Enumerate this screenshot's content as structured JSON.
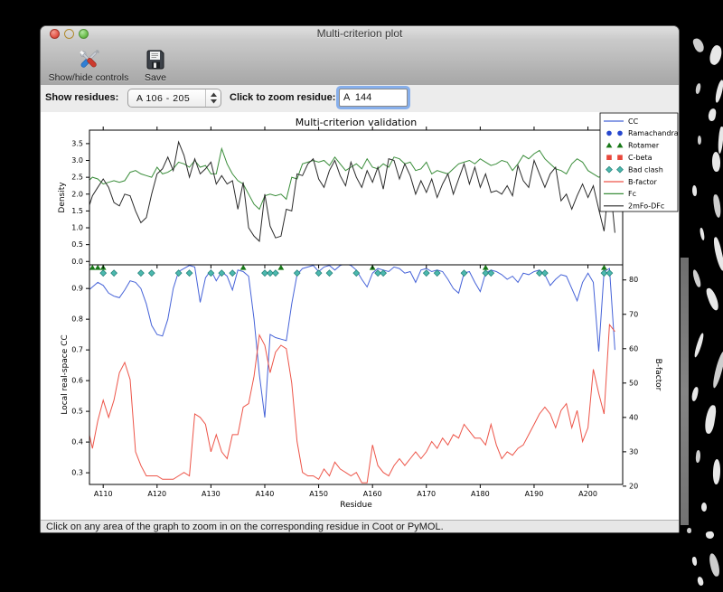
{
  "window": {
    "title": "Multi-criterion plot"
  },
  "toolbar": {
    "buttons": [
      {
        "label": "Show/hide controls"
      },
      {
        "label": "Save"
      }
    ]
  },
  "controls": {
    "show_residues_label": "Show residues:",
    "show_residues_value": "A 106 - 205",
    "zoom_residue_label": "Click to zoom residue:",
    "zoom_residue_value": "A  144"
  },
  "status_bar": {
    "text": "Click on any area of the graph to zoom in on the corresponding residue in Coot or PyMOL."
  },
  "chart_data": {
    "type": "line",
    "title": "Multi-criterion validation",
    "xlabel": "Residue",
    "x_start": 106,
    "x_tick_values": [
      110,
      120,
      130,
      140,
      150,
      160,
      170,
      180,
      190,
      200
    ],
    "x_tick_labels": [
      "A110",
      "A120",
      "A130",
      "A140",
      "A150",
      "A160",
      "A170",
      "A180",
      "A190",
      "A200"
    ],
    "top": {
      "ylabel": "Density",
      "ylim": [
        -0.1,
        3.9
      ],
      "yticks": [
        0.0,
        0.5,
        1.0,
        1.5,
        2.0,
        2.5,
        3.0,
        3.5
      ],
      "series": [
        {
          "name": "Fc",
          "color": "#3a8d3a",
          "values": [
            2.2,
            2.35,
            2.5,
            2.45,
            2.3,
            2.35,
            2.4,
            2.35,
            2.4,
            2.65,
            2.7,
            2.6,
            2.55,
            2.5,
            2.8,
            2.6,
            2.65,
            2.75,
            2.95,
            2.9,
            2.8,
            3.0,
            2.8,
            2.85,
            2.6,
            2.6,
            3.35,
            2.9,
            2.6,
            2.4,
            2.3,
            2.0,
            1.7,
            1.55,
            1.95,
            2.0,
            1.95,
            2.0,
            1.85,
            2.5,
            2.45,
            2.9,
            2.95,
            3.0,
            2.95,
            3.0,
            2.85,
            3.1,
            2.9,
            2.7,
            2.8,
            2.9,
            2.75,
            3.05,
            2.8,
            2.75,
            2.9,
            2.8,
            3.1,
            3.05,
            2.9,
            2.95,
            2.7,
            2.75,
            2.95,
            2.6,
            2.7,
            2.65,
            2.6,
            2.75,
            2.9,
            2.95,
            3.0,
            2.9,
            3.05,
            2.95,
            2.85,
            2.9,
            3.0,
            2.95,
            2.7,
            2.9,
            3.15,
            3.05,
            3.2,
            3.3,
            3.05,
            2.9,
            2.75,
            2.7,
            2.6,
            2.9,
            3.05,
            2.95,
            2.7,
            2.6,
            2.5,
            2.55,
            2.7,
            2.55
          ]
        },
        {
          "name": "2mFo-DFc",
          "color": "#2a2a2a",
          "values": [
            1.6,
            1.45,
            1.95,
            2.2,
            2.45,
            2.2,
            1.75,
            1.65,
            2.0,
            1.95,
            1.5,
            1.15,
            1.3,
            2.0,
            2.6,
            2.75,
            3.1,
            2.7,
            3.55,
            3.15,
            2.5,
            3.05,
            2.6,
            2.75,
            2.95,
            2.3,
            2.55,
            2.3,
            2.4,
            1.55,
            2.35,
            1.0,
            0.75,
            0.6,
            2.0,
            1.05,
            0.7,
            0.75,
            1.55,
            1.5,
            2.6,
            2.55,
            2.9,
            3.05,
            2.45,
            2.2,
            2.7,
            3.0,
            2.55,
            2.25,
            2.95,
            2.5,
            2.2,
            2.7,
            2.35,
            2.8,
            2.15,
            3.05,
            3.0,
            2.45,
            2.9,
            2.55,
            2.0,
            2.4,
            2.05,
            2.45,
            1.9,
            2.3,
            2.6,
            2.0,
            2.45,
            2.9,
            2.3,
            2.8,
            2.2,
            2.6,
            2.05,
            2.1,
            2.0,
            2.25,
            1.95,
            2.85,
            2.4,
            2.2,
            3.0,
            2.6,
            2.2,
            2.6,
            2.8,
            1.8,
            2.0,
            1.55,
            1.95,
            2.3,
            1.9,
            2.25,
            1.55,
            0.9,
            2.5,
            0.85
          ]
        }
      ]
    },
    "bottom": {
      "ylabel_left": "Local real-space CC",
      "ylabel_left_color": "#4663d8",
      "ylabel_right": "B-factor",
      "ylabel_right_color": "#ed5549",
      "ylim_left": [
        0.262,
        0.977
      ],
      "ylim_right": [
        20.5,
        84.4
      ],
      "yticks_left": [
        0.3,
        0.4,
        0.5,
        0.6,
        0.7,
        0.8,
        0.9
      ],
      "yticks_right": [
        20,
        30,
        40,
        50,
        60,
        70,
        80
      ],
      "series": [
        {
          "name": "CC",
          "axis": "left",
          "color": "#4663d8",
          "values": [
            0.86,
            0.89,
            0.905,
            0.92,
            0.91,
            0.885,
            0.875,
            0.87,
            0.895,
            0.925,
            0.92,
            0.9,
            0.85,
            0.78,
            0.75,
            0.745,
            0.8,
            0.9,
            0.955,
            0.965,
            0.975,
            0.97,
            0.855,
            0.935,
            0.96,
            0.925,
            0.955,
            0.94,
            0.895,
            0.96,
            0.955,
            0.94,
            0.8,
            0.62,
            0.48,
            0.75,
            0.74,
            0.735,
            0.73,
            0.85,
            0.945,
            0.965,
            0.97,
            0.975,
            0.955,
            0.97,
            0.975,
            0.96,
            0.975,
            0.98,
            0.975,
            0.96,
            0.93,
            0.905,
            0.95,
            0.965,
            0.96,
            0.955,
            0.97,
            0.965,
            0.95,
            0.955,
            0.92,
            0.96,
            0.965,
            0.955,
            0.96,
            0.955,
            0.93,
            0.9,
            0.885,
            0.95,
            0.955,
            0.92,
            0.89,
            0.95,
            0.96,
            0.955,
            0.945,
            0.93,
            0.94,
            0.92,
            0.95,
            0.945,
            0.955,
            0.96,
            0.945,
            0.91,
            0.93,
            0.945,
            0.94,
            0.9,
            0.86,
            0.92,
            0.95,
            0.92,
            0.695,
            0.955,
            0.965,
            0.7
          ]
        },
        {
          "name": "B-factor",
          "axis": "right",
          "color": "#ed5549",
          "values": [
            47,
            38,
            31,
            39,
            45,
            40,
            45,
            53,
            56,
            51,
            30,
            26,
            23,
            23,
            23,
            22,
            22,
            22,
            23,
            24,
            23,
            41,
            40,
            38,
            30,
            35,
            30,
            28,
            35,
            35,
            43,
            44,
            52,
            64,
            61,
            53,
            59,
            61,
            60,
            50,
            33,
            24,
            23,
            23,
            22,
            25,
            23,
            27,
            25,
            24,
            23,
            24,
            21,
            21,
            32,
            26,
            24,
            23,
            26,
            28,
            26,
            28,
            30,
            28,
            30,
            33,
            31,
            34,
            32,
            35,
            34,
            38,
            36,
            34,
            34,
            32,
            38,
            32,
            28,
            30,
            29,
            31,
            32,
            35,
            38,
            41,
            43,
            41,
            37,
            42,
            44,
            37,
            42,
            33,
            37,
            54,
            47,
            41,
            67,
            65
          ]
        }
      ],
      "markers": [
        {
          "name": "Rotamer",
          "shape": "triangle",
          "color": "#187818",
          "residues": [
            108,
            109,
            110,
            136,
            143,
            160,
            181,
            203
          ]
        },
        {
          "name": "Bad clash",
          "shape": "diamond",
          "color": "#4cb8ae",
          "edge": "#1e7d74",
          "residues": [
            110,
            112,
            117,
            119,
            124,
            126,
            130,
            132,
            134,
            140,
            141,
            142,
            146,
            150,
            152,
            157,
            161,
            162,
            170,
            172,
            177,
            181,
            182,
            191,
            192,
            203,
            204
          ]
        }
      ]
    },
    "legend": [
      {
        "label": "CC",
        "type": "line",
        "color": "#4663d8"
      },
      {
        "label": "Ramachandran",
        "type": "circle",
        "color": "#2748cf"
      },
      {
        "label": "Rotamer",
        "type": "triangle",
        "color": "#187818"
      },
      {
        "label": "C-beta",
        "type": "square",
        "color": "#e8473b"
      },
      {
        "label": "Bad clash",
        "type": "diamond",
        "color": "#4cb8ae"
      },
      {
        "label": "B-factor",
        "type": "line",
        "color": "#ed5549"
      },
      {
        "label": "Fc",
        "type": "line",
        "color": "#3a8d3a"
      },
      {
        "label": "2mFo-DFc",
        "type": "line",
        "color": "#2a2a2a"
      }
    ]
  }
}
